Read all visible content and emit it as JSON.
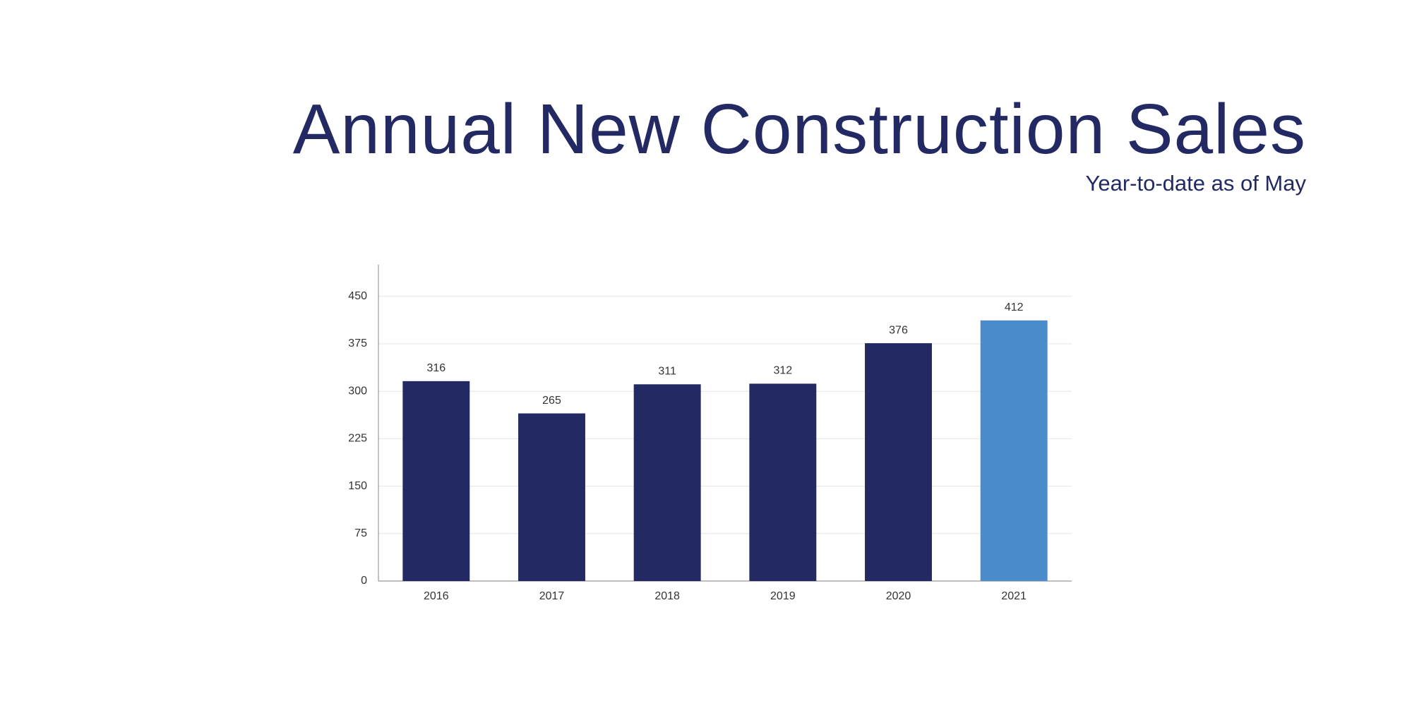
{
  "chart_data": {
    "type": "bar",
    "title": "Annual New Construction Sales",
    "subtitle": "Year-to-date as of May",
    "categories": [
      "2016",
      "2017",
      "2018",
      "2019",
      "2020",
      "2021"
    ],
    "values": [
      316,
      265,
      311,
      312,
      376,
      412
    ],
    "colors": [
      "#232a63",
      "#232a63",
      "#232a63",
      "#232a63",
      "#232a63",
      "#4a8ccb"
    ],
    "ylim": [
      0,
      500
    ],
    "yticks": [
      0,
      75,
      150,
      225,
      300,
      375,
      450
    ],
    "grid": true
  }
}
